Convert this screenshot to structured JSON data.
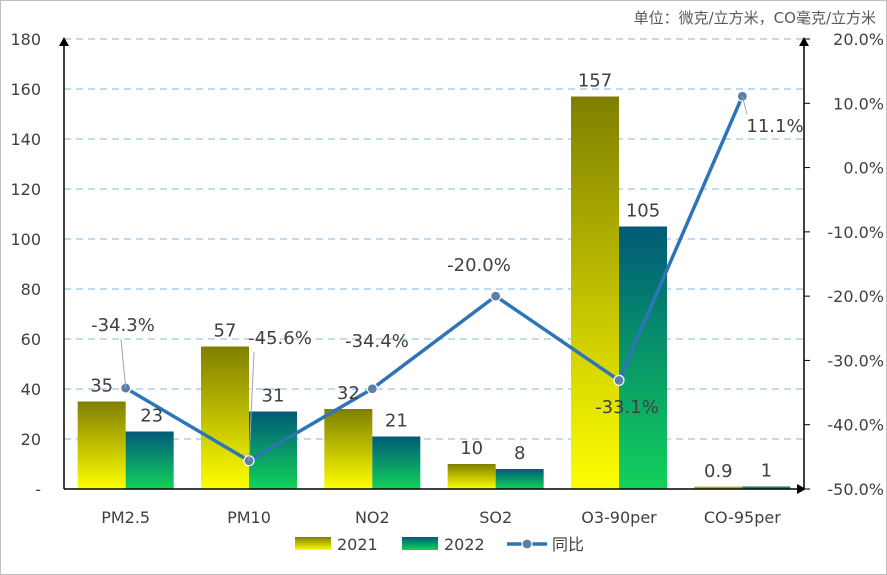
{
  "chart_data": {
    "type": "bar",
    "unit_note": "单位：微克/立方米，CO毫克/立方米",
    "categories": [
      "PM2.5",
      "PM10",
      "NO2",
      "SO2",
      "O3-90per",
      "CO-95per"
    ],
    "series": [
      {
        "name": "2021",
        "type": "bar",
        "axis": "left",
        "values": [
          35,
          57,
          32,
          10,
          157,
          0.9
        ],
        "color_top": "#7f7f00",
        "color_bottom": "#ffff00"
      },
      {
        "name": "2022",
        "type": "bar",
        "axis": "left",
        "values": [
          23,
          31,
          21,
          8,
          105,
          1
        ],
        "color_top": "#005a78",
        "color_bottom": "#12d25a"
      },
      {
        "name": "同比",
        "type": "line",
        "axis": "right",
        "values": [
          -34.3,
          -45.6,
          -34.4,
          -20.0,
          -33.1,
          11.1
        ],
        "labels": [
          "-34.3%",
          "-45.6%",
          "-34.4%",
          "-20.0%",
          "-33.1%",
          "11.1%"
        ],
        "color": "#2e75b6"
      }
    ],
    "y_left": {
      "min": 0,
      "max": 180,
      "step": 20,
      "ticks": [
        "-",
        "20",
        "40",
        "60",
        "80",
        "100",
        "120",
        "140",
        "160",
        "180"
      ]
    },
    "y_right": {
      "min": -50,
      "max": 20,
      "step": 10,
      "ticks": [
        "-50.0%",
        "-40.0%",
        "-30.0%",
        "-20.0%",
        "-10.0%",
        "0.0%",
        "10.0%",
        "20.0%"
      ]
    },
    "grid": true,
    "legend_position": "bottom"
  }
}
